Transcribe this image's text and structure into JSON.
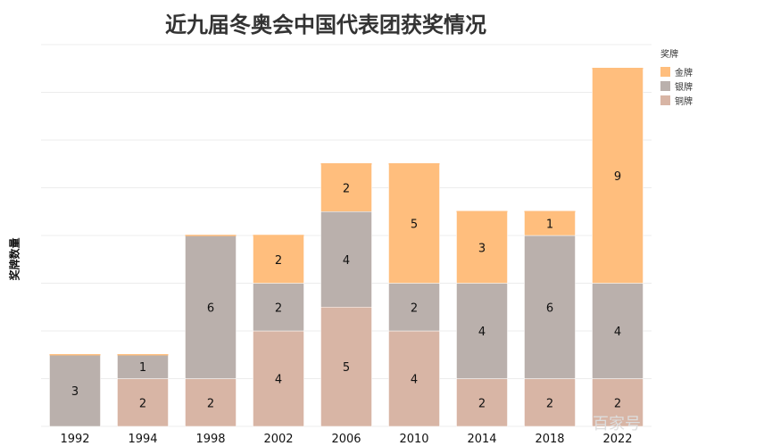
{
  "chart_data": {
    "type": "bar",
    "stacked": true,
    "title": "近九届冬奥会中国代表团获奖情况",
    "ylabel": "奖牌数量",
    "xlabel": "",
    "categories": [
      "1992",
      "1994",
      "1998",
      "2002",
      "2006",
      "2010",
      "2014",
      "2018",
      "2022"
    ],
    "legend_title": "奖牌",
    "legend_position": "top-right",
    "grid": true,
    "ylim": [
      0,
      16
    ],
    "series": [
      {
        "name": "铜牌",
        "color": "#d8b5a5",
        "values": [
          0,
          2,
          2,
          4,
          5,
          4,
          2,
          2,
          2
        ]
      },
      {
        "name": "银牌",
        "color": "#bab0ac",
        "values": [
          3,
          1,
          6,
          2,
          4,
          2,
          4,
          6,
          4
        ]
      },
      {
        "name": "金牌",
        "color": "#ffbe7d",
        "values": [
          0,
          0,
          0,
          2,
          2,
          5,
          3,
          1,
          9
        ]
      }
    ]
  },
  "watermark": "百家号"
}
